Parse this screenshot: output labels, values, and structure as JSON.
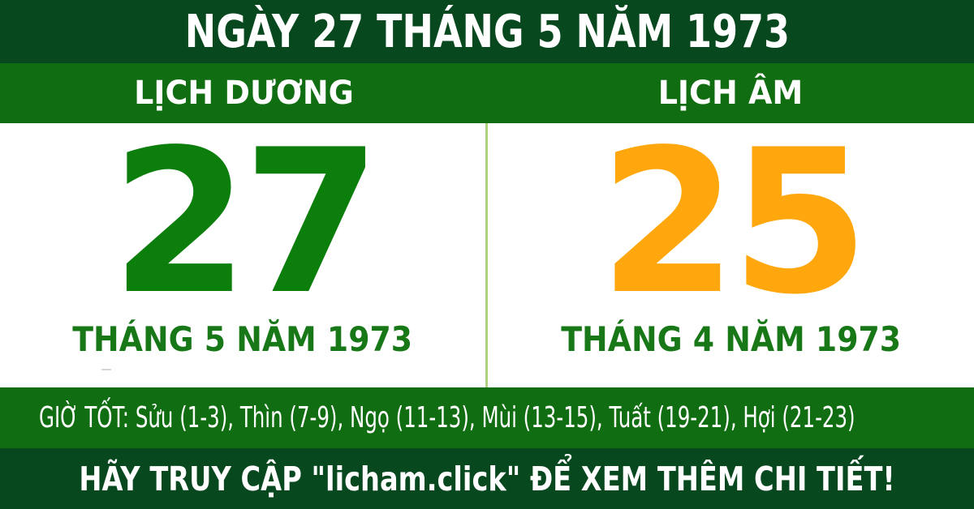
{
  "title": "NGÀY 27 THÁNG 5 NĂM 1973",
  "solar": {
    "header": "LỊCH DƯƠNG",
    "day": "27",
    "month_year": "THÁNG 5 NĂM 1973"
  },
  "lunar": {
    "header": "LỊCH ÂM",
    "day": "25",
    "month_year": "THÁNG 4 NĂM 1973"
  },
  "good_hours": "GIỜ TỐT: Sửu (1-3), Thìn (7-9), Ngọ (11-13), Mùi (13-15), Tuất (19-21), Hợi (21-23)",
  "footer": "HÃY TRUY CẬP \"licham.click\" ĐỂ XEM THÊM CHI TIẾT!",
  "colors": {
    "banner_dark_green": "#07481f",
    "band_medium_green": "#116d11",
    "solar_day_green": "#0c7e0c",
    "lunar_day_orange": "#ffa70d",
    "month_label_green": "#187818",
    "divider_light_green": "#aed37e",
    "text_white": "#ffffff",
    "panel_background": "#ffffff"
  }
}
